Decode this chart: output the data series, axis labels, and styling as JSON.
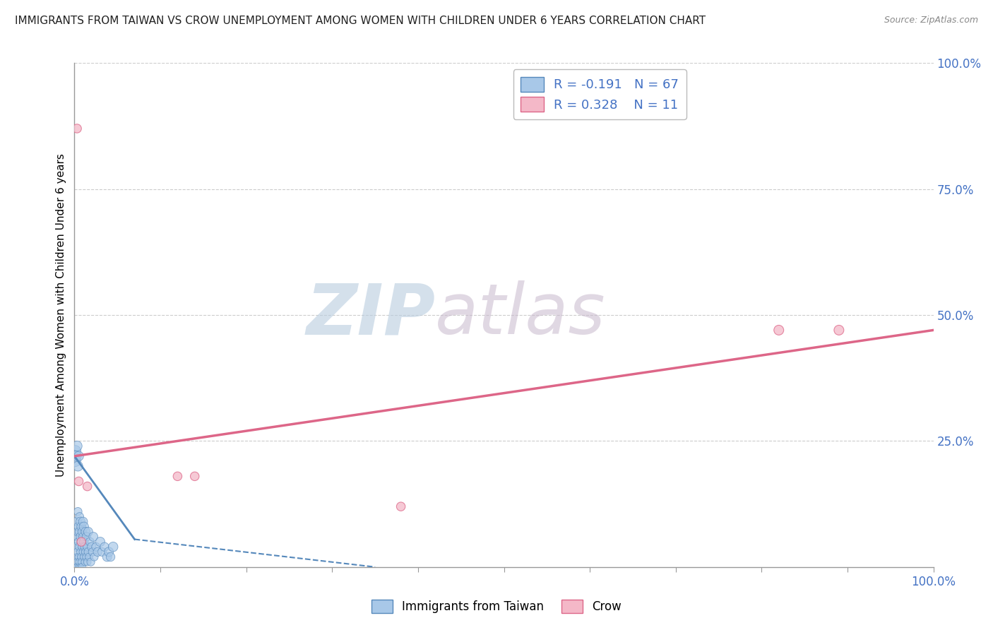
{
  "title": "IMMIGRANTS FROM TAIWAN VS CROW UNEMPLOYMENT AMONG WOMEN WITH CHILDREN UNDER 6 YEARS CORRELATION CHART",
  "source": "Source: ZipAtlas.com",
  "ylabel": "Unemployment Among Women with Children Under 6 years",
  "xlim": [
    0.0,
    1.0
  ],
  "ylim": [
    0.0,
    1.0
  ],
  "x_ticks": [
    0.0,
    0.1,
    0.2,
    0.3,
    0.4,
    0.5,
    0.6,
    0.7,
    0.8,
    0.9,
    1.0
  ],
  "y_tick_labels_right": [
    "",
    "25.0%",
    "50.0%",
    "75.0%",
    "100.0%"
  ],
  "y_ticks_right": [
    0.0,
    0.25,
    0.5,
    0.75,
    1.0
  ],
  "blue_R": -0.191,
  "blue_N": 67,
  "pink_R": 0.328,
  "pink_N": 11,
  "blue_color": "#a8c8e8",
  "pink_color": "#f4b8c8",
  "blue_edge": "#5588bb",
  "pink_edge": "#dd6688",
  "blue_scatter_x": [
    0.001,
    0.002,
    0.002,
    0.003,
    0.003,
    0.003,
    0.003,
    0.004,
    0.004,
    0.004,
    0.005,
    0.005,
    0.005,
    0.005,
    0.006,
    0.006,
    0.006,
    0.006,
    0.007,
    0.007,
    0.007,
    0.007,
    0.008,
    0.008,
    0.008,
    0.008,
    0.009,
    0.009,
    0.009,
    0.01,
    0.01,
    0.01,
    0.011,
    0.011,
    0.011,
    0.012,
    0.012,
    0.013,
    0.013,
    0.014,
    0.014,
    0.015,
    0.015,
    0.016,
    0.016,
    0.017,
    0.018,
    0.019,
    0.02,
    0.021,
    0.022,
    0.023,
    0.025,
    0.027,
    0.03,
    0.032,
    0.035,
    0.038,
    0.04,
    0.042,
    0.045,
    0.001,
    0.001,
    0.002,
    0.003,
    0.004,
    0.005
  ],
  "blue_scatter_y": [
    0.02,
    0.0,
    0.04,
    0.01,
    0.06,
    0.09,
    0.0,
    0.03,
    0.07,
    0.11,
    0.02,
    0.05,
    0.08,
    0.0,
    0.01,
    0.04,
    0.07,
    0.1,
    0.03,
    0.06,
    0.0,
    0.09,
    0.02,
    0.05,
    0.08,
    0.01,
    0.04,
    0.07,
    0.0,
    0.03,
    0.06,
    0.09,
    0.02,
    0.05,
    0.08,
    0.01,
    0.04,
    0.03,
    0.07,
    0.02,
    0.06,
    0.01,
    0.04,
    0.03,
    0.07,
    0.02,
    0.05,
    0.01,
    0.04,
    0.03,
    0.06,
    0.02,
    0.04,
    0.03,
    0.05,
    0.03,
    0.04,
    0.02,
    0.03,
    0.02,
    0.04,
    0.21,
    0.23,
    0.22,
    0.24,
    0.2,
    0.22
  ],
  "blue_scatter_sizes": [
    60,
    70,
    80,
    55,
    65,
    90,
    50,
    75,
    85,
    70,
    60,
    80,
    90,
    50,
    65,
    75,
    85,
    70,
    60,
    80,
    55,
    90,
    65,
    75,
    85,
    50,
    70,
    80,
    60,
    65,
    75,
    85,
    60,
    80,
    90,
    55,
    75,
    70,
    85,
    65,
    80,
    60,
    75,
    70,
    85,
    60,
    75,
    65,
    80,
    70,
    85,
    65,
    75,
    80,
    90,
    75,
    80,
    85,
    90,
    80,
    95,
    120,
    130,
    110,
    105,
    100,
    95
  ],
  "pink_scatter_x": [
    0.003,
    0.005,
    0.008,
    0.015,
    0.12,
    0.14,
    0.38,
    0.82,
    0.89
  ],
  "pink_scatter_y": [
    0.87,
    0.17,
    0.05,
    0.16,
    0.18,
    0.18,
    0.12,
    0.47,
    0.47
  ],
  "pink_scatter_sizes": [
    80,
    80,
    80,
    80,
    80,
    80,
    80,
    100,
    100
  ],
  "blue_trend_x": [
    0.0,
    0.07,
    0.35
  ],
  "blue_trend_y": [
    0.22,
    0.055,
    0.0
  ],
  "blue_trend_solid_end": 0.07,
  "pink_trend_x": [
    0.0,
    1.0
  ],
  "pink_trend_y": [
    0.22,
    0.47
  ],
  "background_color": "#ffffff",
  "grid_color": "#cccccc",
  "title_color": "#222222",
  "tick_color": "#4472c4",
  "axis_color": "#999999",
  "watermark_zip_color": "#b0c8e0",
  "watermark_atlas_color": "#d0b8d0"
}
